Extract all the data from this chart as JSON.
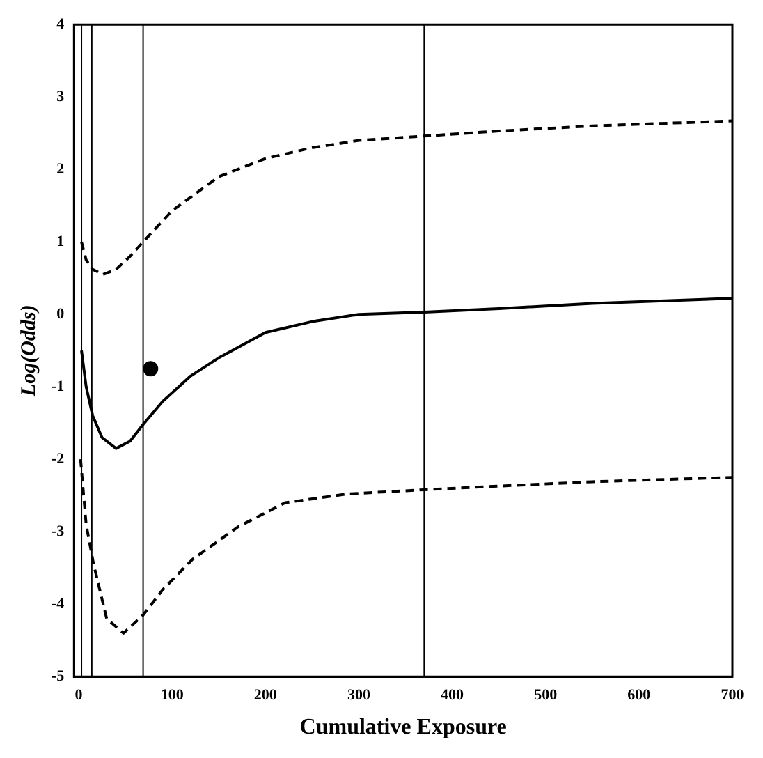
{
  "chart_data": {
    "type": "line",
    "xlabel": "Cumulative Exposure",
    "ylabel": "Log(Odds)",
    "xlim": [
      -5,
      700
    ],
    "xticks": [
      0,
      100,
      200,
      300,
      400,
      500,
      600,
      700
    ],
    "ylim": [
      -5,
      4
    ],
    "yticks": [
      -5,
      -4,
      -3,
      -2,
      -1,
      0,
      1,
      2,
      3,
      4
    ],
    "grid": false,
    "legend": false,
    "marker": "none",
    "series": [
      {
        "color": "#000000",
        "line_style": "dashed",
        "x": [
          3,
          8,
          15,
          26,
          40,
          55,
          69,
          100,
          150,
          200,
          250,
          300,
          370,
          450,
          550,
          700
        ],
        "values": [
          1.0,
          0.75,
          0.62,
          0.55,
          0.62,
          0.8,
          1.0,
          1.43,
          1.9,
          2.15,
          2.3,
          2.4,
          2.46,
          2.53,
          2.6,
          2.67
        ]
      },
      {
        "color": "#000000",
        "line_style": "solid",
        "x": [
          3,
          8,
          15,
          25,
          40,
          55,
          69,
          90,
          120,
          150,
          200,
          250,
          300,
          370,
          450,
          550,
          700
        ],
        "values": [
          -0.5,
          -1.0,
          -1.4,
          -1.7,
          -1.85,
          -1.75,
          -1.52,
          -1.2,
          -0.85,
          -0.6,
          -0.25,
          -0.1,
          0.0,
          0.03,
          0.08,
          0.15,
          0.22
        ]
      },
      {
        "color": "#000000",
        "line_style": "dashed",
        "x": [
          2,
          8,
          16,
          30,
          48,
          69,
          90,
          122,
          171,
          221,
          287,
          370,
          450,
          550,
          700
        ],
        "values": [
          -2.0,
          -2.9,
          -3.45,
          -4.2,
          -4.4,
          -4.15,
          -3.8,
          -3.38,
          -2.93,
          -2.6,
          -2.48,
          -2.42,
          -2.37,
          -2.31,
          -2.25
        ]
      },
      {
        "type": "scatter",
        "color": "#000000",
        "marker": "circle",
        "x": [
          77
        ],
        "values": [
          -0.75
        ]
      }
    ],
    "ref_lines": [
      {
        "axis": "x",
        "value": 3,
        "color": "#000000"
      },
      {
        "axis": "x",
        "value": 14,
        "color": "#000000"
      },
      {
        "axis": "x",
        "value": 69,
        "color": "#000000"
      },
      {
        "axis": "x",
        "value": 370,
        "color": "#000000"
      }
    ]
  }
}
